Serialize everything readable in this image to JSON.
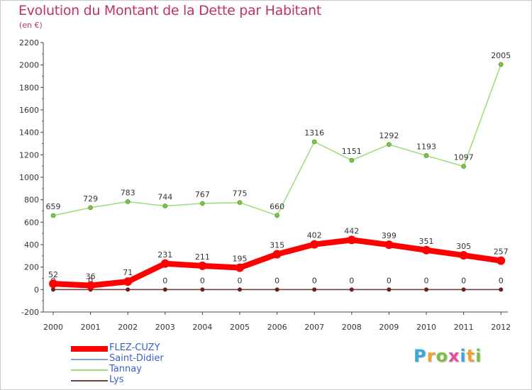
{
  "header": {
    "title": "Evolution du Montant de la Dette par Habitant",
    "unit": "(en €)"
  },
  "chart_data": {
    "type": "line",
    "title": "Evolution du Montant de la Dette par Habitant",
    "subtitle": "(en €)",
    "xlabel": "",
    "ylabel": "",
    "categories": [
      "2000",
      "2001",
      "2002",
      "2003",
      "2004",
      "2005",
      "2006",
      "2007",
      "2008",
      "2009",
      "2010",
      "2011",
      "2012"
    ],
    "ylim": [
      -200,
      2200
    ],
    "yticks": [
      -200,
      0,
      200,
      400,
      600,
      800,
      1000,
      1200,
      1400,
      1600,
      1800,
      2000,
      2200
    ],
    "grid": false,
    "legend_position": "bottom-left",
    "series": [
      {
        "name": "FLEZ-CUZY",
        "color": "#ff0000",
        "values": [
          52,
          36,
          71,
          231,
          211,
          195,
          315,
          402,
          442,
          399,
          351,
          305,
          257
        ]
      },
      {
        "name": "Saint-Didier",
        "color": "#7aa6d6",
        "values": [
          0,
          0,
          0,
          0,
          0,
          0,
          0,
          0,
          0,
          0,
          0,
          0,
          0
        ]
      },
      {
        "name": "Tannay",
        "color": "#99dd77",
        "values": [
          659,
          729,
          783,
          744,
          767,
          775,
          660,
          1316,
          1151,
          1292,
          1193,
          1097,
          2005
        ]
      },
      {
        "name": "Lys",
        "color": "#7a3a3a",
        "values": [
          0,
          0,
          0,
          0,
          0,
          0,
          0,
          0,
          0,
          0,
          0,
          0,
          0
        ]
      }
    ]
  },
  "logo": {
    "letters": [
      "P",
      "r",
      "o",
      "x",
      "i",
      "t",
      "i"
    ],
    "colors": [
      "#3aa7e0",
      "#f0a030",
      "#7ac143",
      "#e84a9c",
      "#3aa7e0",
      "#f0a030",
      "#7ac143"
    ]
  }
}
